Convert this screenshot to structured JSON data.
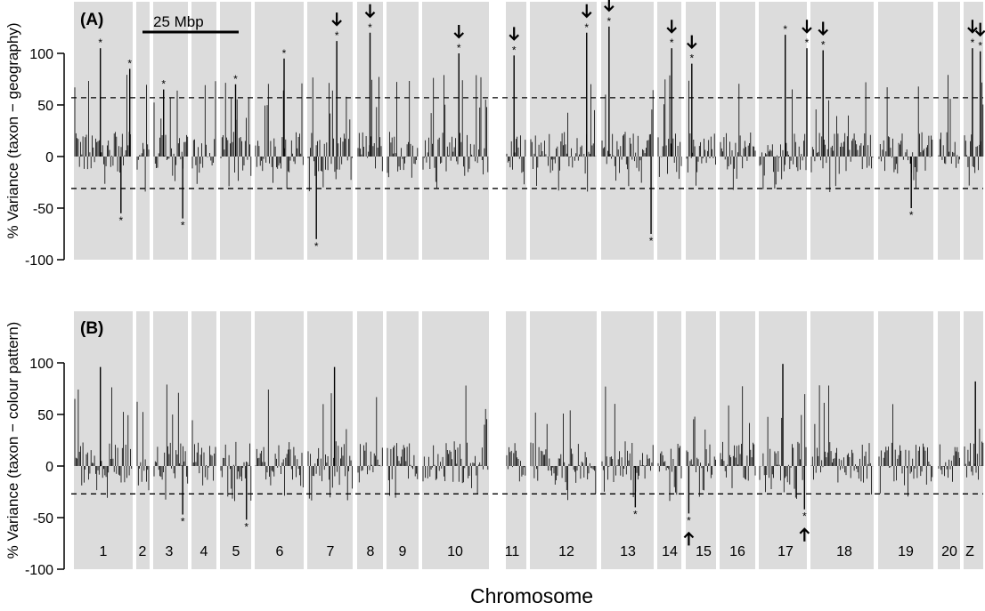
{
  "xlabel": "Chromosome",
  "scalebar_label": "25 Mbp",
  "chart_data": [
    {
      "type": "bar",
      "panel_label": "(A)",
      "ylabel": "% Variance (taxon − geography)",
      "yticks": [
        -100,
        -50,
        0,
        50,
        100
      ],
      "ylim": [
        -100,
        150
      ],
      "thresholds": [
        57,
        -31
      ],
      "chromosomes": [
        "1",
        "2",
        "3",
        "4",
        "5",
        "6",
        "7",
        "8",
        "9",
        "10",
        "11",
        "12",
        "13",
        "14",
        "15",
        "16",
        "17",
        "18",
        "19",
        "20",
        "Z"
      ],
      "chromosome_band_fill": "#dcdcdc",
      "peaks": [
        {
          "chr": "1",
          "pos": 0.45,
          "value": 105,
          "star": true
        },
        {
          "chr": "1",
          "pos": 0.8,
          "value": -55,
          "star": true
        },
        {
          "chr": "1",
          "pos": 0.95,
          "value": 85,
          "star": true
        },
        {
          "chr": "3",
          "pos": 0.3,
          "value": 65,
          "star": true
        },
        {
          "chr": "3",
          "pos": 0.85,
          "value": -60,
          "star": true
        },
        {
          "chr": "5",
          "pos": 0.5,
          "value": 70,
          "star": true
        },
        {
          "chr": "6",
          "pos": 0.6,
          "value": 95,
          "star": true
        },
        {
          "chr": "7",
          "pos": 0.2,
          "value": -80,
          "star": true
        },
        {
          "chr": "7",
          "pos": 0.65,
          "value": 112,
          "star": true,
          "arrow": true
        },
        {
          "chr": "8",
          "pos": 0.5,
          "value": 120,
          "star": true,
          "arrow": true
        },
        {
          "chr": "10",
          "pos": 0.55,
          "value": 100,
          "star": true,
          "arrow": true
        },
        {
          "chr": "11",
          "pos": 0.4,
          "value": 98,
          "star": true,
          "arrow": true
        },
        {
          "chr": "12",
          "pos": 0.85,
          "value": 120,
          "star": true,
          "arrow": true
        },
        {
          "chr": "13",
          "pos": 0.15,
          "value": 126,
          "star": true,
          "arrow": true
        },
        {
          "chr": "13",
          "pos": 0.95,
          "value": -75,
          "star": true
        },
        {
          "chr": "14",
          "pos": 0.6,
          "value": 105,
          "star": true,
          "arrow": true
        },
        {
          "chr": "15",
          "pos": 0.2,
          "value": 90,
          "star": true,
          "arrow": true
        },
        {
          "chr": "17",
          "pos": 0.55,
          "value": 118,
          "star": true
        },
        {
          "chr": "17",
          "pos": 1.0,
          "value": 105,
          "star": true,
          "arrow": true
        },
        {
          "chr": "18",
          "pos": 0.2,
          "value": 103,
          "star": true,
          "arrow": true
        },
        {
          "chr": "19",
          "pos": 0.6,
          "value": -50,
          "star": true
        },
        {
          "chr": "Z",
          "pos": 0.45,
          "value": 105,
          "star": true,
          "arrow": true
        },
        {
          "chr": "Z",
          "pos": 0.85,
          "value": 102,
          "star": true,
          "arrow": true
        }
      ]
    },
    {
      "type": "bar",
      "panel_label": "(B)",
      "ylabel": "% Variance (taxon − colour pattern)",
      "yticks": [
        -100,
        -50,
        0,
        50,
        100
      ],
      "ylim": [
        -100,
        150
      ],
      "thresholds": [
        -27
      ],
      "chromosomes": [
        "1",
        "2",
        "3",
        "4",
        "5",
        "6",
        "7",
        "8",
        "9",
        "10",
        "11",
        "12",
        "13",
        "14",
        "15",
        "16",
        "17",
        "18",
        "19",
        "20",
        "Z"
      ],
      "chromosome_band_fill": "#dcdcdc",
      "peaks": [
        {
          "chr": "1",
          "pos": 0.45,
          "value": 96,
          "star": false
        },
        {
          "chr": "3",
          "pos": 0.85,
          "value": -47,
          "star": true
        },
        {
          "chr": "5",
          "pos": 0.85,
          "value": -52,
          "star": true
        },
        {
          "chr": "7",
          "pos": 0.6,
          "value": 96,
          "star": false
        },
        {
          "chr": "13",
          "pos": 0.65,
          "value": -40,
          "star": true
        },
        {
          "chr": "15",
          "pos": 0.1,
          "value": -46,
          "star": true,
          "arrow": true
        },
        {
          "chr": "17",
          "pos": 0.95,
          "value": -42,
          "star": true,
          "arrow": true
        },
        {
          "chr": "17",
          "pos": 0.5,
          "value": 99,
          "star": false
        },
        {
          "chr": "Z",
          "pos": 0.6,
          "value": 82,
          "star": false
        }
      ]
    }
  ]
}
